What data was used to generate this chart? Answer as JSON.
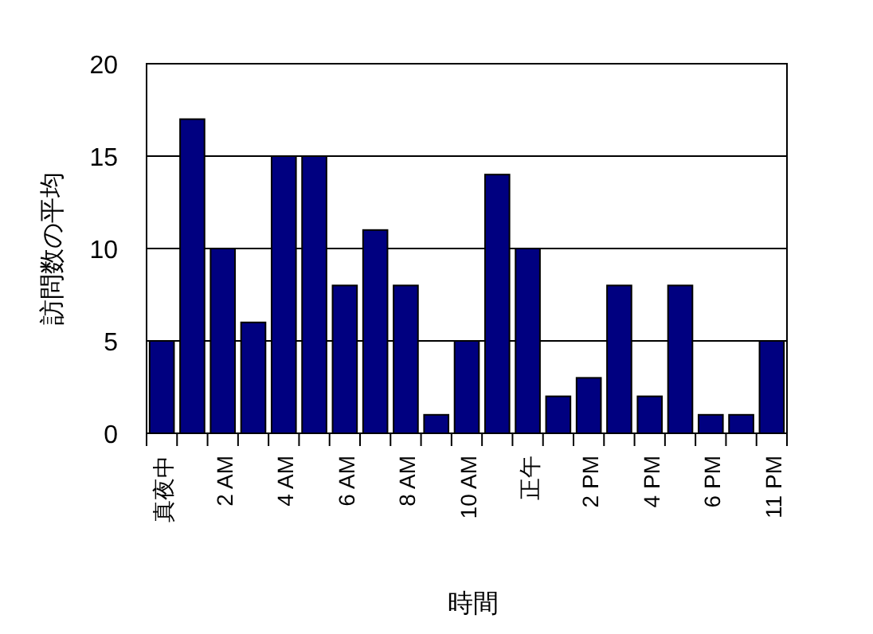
{
  "chart_data": {
    "type": "bar",
    "xlabel": "時間",
    "ylabel": "訪問数の平均",
    "categories": [
      "真夜中",
      null,
      "2 AM",
      null,
      "4 AM",
      null,
      "6 AM",
      null,
      "8 AM",
      null,
      "10 AM",
      null,
      "正午",
      null,
      "2 PM",
      null,
      "4 PM",
      null,
      "6 PM",
      null,
      "11 PM"
    ],
    "values": [
      5,
      17,
      10,
      6,
      15,
      15,
      8,
      11,
      8,
      1,
      5,
      14,
      10,
      2,
      3,
      8,
      2,
      8,
      1,
      1,
      5
    ],
    "color": "#000080",
    "ylim": [
      0,
      20
    ],
    "yticks": [
      0,
      5,
      10,
      15,
      20
    ],
    "grid": "y"
  }
}
